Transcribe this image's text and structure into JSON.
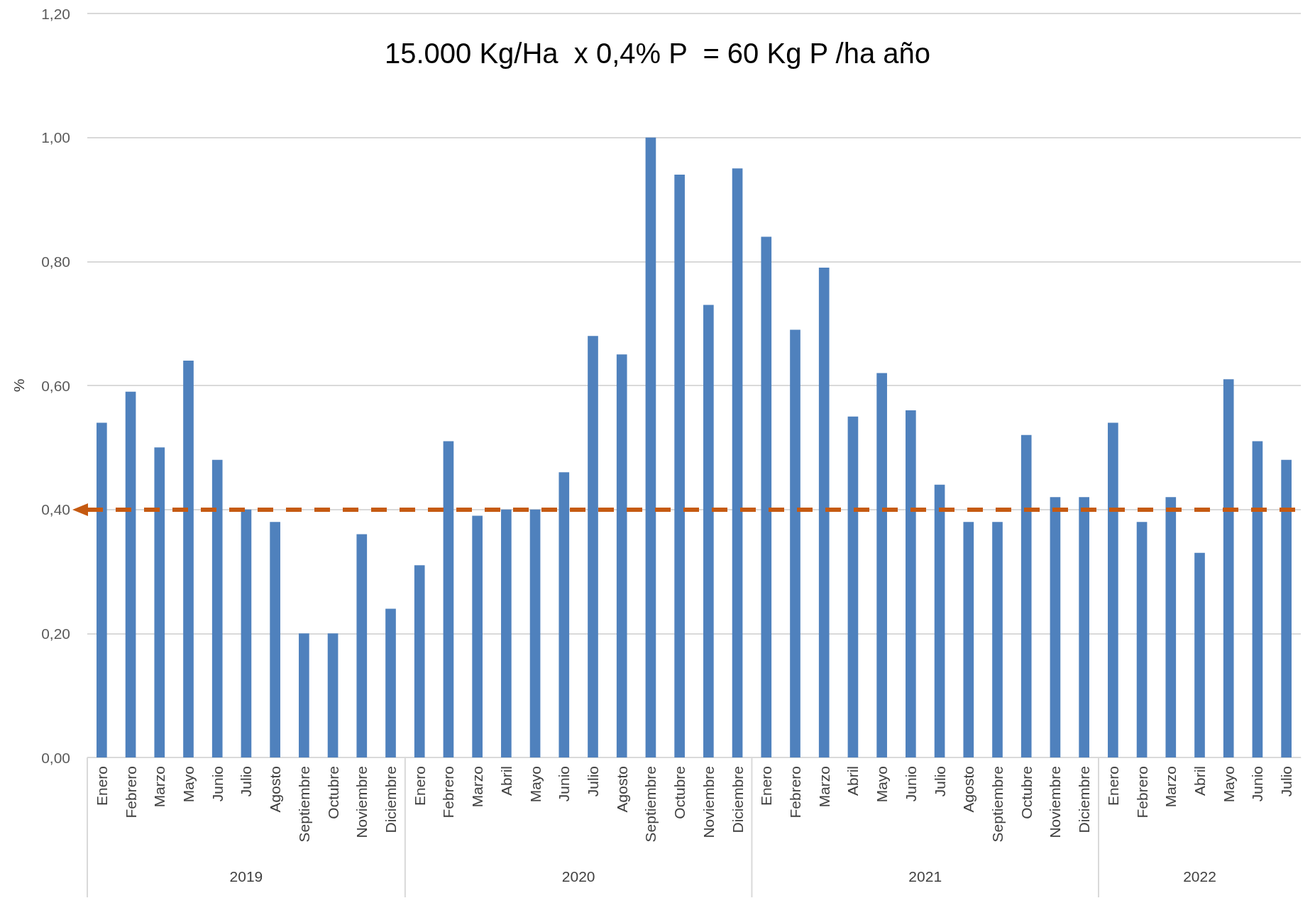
{
  "chart_data": {
    "type": "bar",
    "title": "15.000 Kg/Ha  x 0,4% P  = 60 Kg P /ha año",
    "ylabel": "%",
    "categories": [
      "Enero",
      "Febrero",
      "Marzo",
      "Mayo",
      "Junio",
      "Julio",
      "Agosto",
      "Septiembre",
      "Octubre",
      "Noviembre",
      "Diciembre",
      "Enero",
      "Febrero",
      "Marzo",
      "Abril",
      "Mayo",
      "Junio",
      "Julio",
      "Agosto",
      "Septiembre",
      "Octubre",
      "Noviembre",
      "Diciembre",
      "Enero",
      "Febrero",
      "Marzo",
      "Abril",
      "Mayo",
      "Junio",
      "Julio",
      "Agosto",
      "Septiembre",
      "Octubre",
      "Noviembre",
      "Diciembre",
      "Enero",
      "Febrero",
      "Marzo",
      "Abril",
      "Mayo",
      "Junio",
      "Julio"
    ],
    "values": [
      0.54,
      0.59,
      0.5,
      0.64,
      0.48,
      0.4,
      0.38,
      0.2,
      0.2,
      0.36,
      0.24,
      0.31,
      0.51,
      0.39,
      0.4,
      0.4,
      0.46,
      0.68,
      0.65,
      1.0,
      0.94,
      0.73,
      0.95,
      0.84,
      0.69,
      0.79,
      0.55,
      0.62,
      0.56,
      0.44,
      0.38,
      0.38,
      0.52,
      0.42,
      0.42,
      0.54,
      0.38,
      0.42,
      0.33,
      0.61,
      0.51,
      0.48
    ],
    "color": "#4f81bd",
    "ylim": [
      0,
      1.2
    ],
    "yticks": [
      {
        "value": 0,
        "label": "0,00"
      },
      {
        "value": 0.2,
        "label": "0,20"
      },
      {
        "value": 0.4,
        "label": "0,40"
      },
      {
        "value": 0.6,
        "label": "0,60"
      },
      {
        "value": 0.8,
        "label": "0,80"
      },
      {
        "value": 1.0,
        "label": "1,00"
      },
      {
        "value": 1.2,
        "label": "1,20"
      }
    ],
    "grid": "y",
    "ref_lines": [
      {
        "axis": "y",
        "value": 0.4,
        "color": "#c55a11",
        "line_style": "dashed"
      }
    ],
    "annotations": [
      "2019",
      "2020",
      "2021",
      "2022"
    ]
  }
}
